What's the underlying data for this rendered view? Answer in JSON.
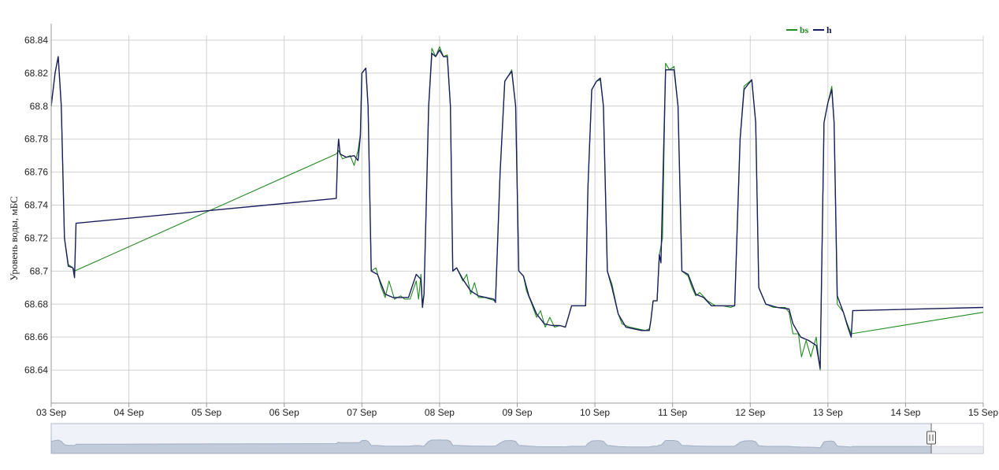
{
  "chart_data": {
    "type": "line",
    "title": "",
    "xlabel": "",
    "ylabel": "Уровень воды, мБС",
    "ylim": [
      68.62,
      68.85
    ],
    "xlim": [
      0,
      12
    ],
    "grid": true,
    "legend_position": "top-right",
    "x_ticks": [
      "03 Sep",
      "04 Sep",
      "05 Sep",
      "06 Sep",
      "07 Sep",
      "08 Sep",
      "09 Sep",
      "10 Sep",
      "11 Sep",
      "12 Sep",
      "13 Sep",
      "14 Sep",
      "15 Sep"
    ],
    "y_ticks": [
      "68.84",
      "68.82",
      "68.8",
      "68.78",
      "68.76",
      "68.74",
      "68.72",
      "68.7",
      "68.68",
      "68.66",
      "68.64"
    ],
    "series": [
      {
        "name": "bs",
        "color": "#228B22",
        "points": [
          [
            0.0,
            68.8
          ],
          [
            0.05,
            68.82
          ],
          [
            0.09,
            68.83
          ],
          [
            0.13,
            68.8
          ],
          [
            0.17,
            68.72
          ],
          [
            0.22,
            68.704
          ],
          [
            0.28,
            68.702
          ],
          [
            0.3,
            68.7
          ],
          [
            3.67,
            68.771
          ],
          [
            3.7,
            68.773
          ],
          [
            3.75,
            68.768
          ],
          [
            3.85,
            68.77
          ],
          [
            3.9,
            68.764
          ],
          [
            3.95,
            68.773
          ],
          [
            3.98,
            68.783
          ],
          [
            4.0,
            68.82
          ],
          [
            4.05,
            68.823
          ],
          [
            4.08,
            68.8
          ],
          [
            4.12,
            68.7
          ],
          [
            4.18,
            68.702
          ],
          [
            4.25,
            68.69
          ],
          [
            4.3,
            68.684
          ],
          [
            4.35,
            68.694
          ],
          [
            4.42,
            68.683
          ],
          [
            4.5,
            68.685
          ],
          [
            4.55,
            68.683
          ],
          [
            4.62,
            68.683
          ],
          [
            4.7,
            68.694
          ],
          [
            4.73,
            68.683
          ],
          [
            4.76,
            68.698
          ],
          [
            4.78,
            68.68
          ],
          [
            4.8,
            68.686
          ],
          [
            4.86,
            68.8
          ],
          [
            4.9,
            68.835
          ],
          [
            4.95,
            68.83
          ],
          [
            5.0,
            68.836
          ],
          [
            5.05,
            68.83
          ],
          [
            5.1,
            68.831
          ],
          [
            5.14,
            68.8
          ],
          [
            5.17,
            68.7
          ],
          [
            5.22,
            68.702
          ],
          [
            5.3,
            68.694
          ],
          [
            5.35,
            68.698
          ],
          [
            5.4,
            68.686
          ],
          [
            5.45,
            68.693
          ],
          [
            5.5,
            68.684
          ],
          [
            5.58,
            68.684
          ],
          [
            5.65,
            68.683
          ],
          [
            5.72,
            68.682
          ],
          [
            5.78,
            68.76
          ],
          [
            5.84,
            68.815
          ],
          [
            5.88,
            68.818
          ],
          [
            5.93,
            68.822
          ],
          [
            5.98,
            68.8
          ],
          [
            6.02,
            68.7
          ],
          [
            6.08,
            68.697
          ],
          [
            6.12,
            68.688
          ],
          [
            6.18,
            68.681
          ],
          [
            6.25,
            68.672
          ],
          [
            6.3,
            68.676
          ],
          [
            6.36,
            68.666
          ],
          [
            6.42,
            68.672
          ],
          [
            6.48,
            68.666
          ],
          [
            6.55,
            68.667
          ],
          [
            6.62,
            68.666
          ],
          [
            6.7,
            68.679
          ],
          [
            6.8,
            68.679
          ],
          [
            6.88,
            68.679
          ],
          [
            6.91,
            68.75
          ],
          [
            6.96,
            68.81
          ],
          [
            7.02,
            68.815
          ],
          [
            7.07,
            68.816
          ],
          [
            7.11,
            68.8
          ],
          [
            7.16,
            68.7
          ],
          [
            7.22,
            68.692
          ],
          [
            7.3,
            68.674
          ],
          [
            7.35,
            68.668
          ],
          [
            7.45,
            68.666
          ],
          [
            7.55,
            68.665
          ],
          [
            7.65,
            68.664
          ],
          [
            7.7,
            68.665
          ],
          [
            7.72,
            68.67
          ],
          [
            7.75,
            68.682
          ],
          [
            7.8,
            68.682
          ],
          [
            7.83,
            68.71
          ],
          [
            7.87,
            68.72
          ],
          [
            7.91,
            68.826
          ],
          [
            7.96,
            68.822
          ],
          [
            8.02,
            68.824
          ],
          [
            8.07,
            68.8
          ],
          [
            8.12,
            68.7
          ],
          [
            8.2,
            68.697
          ],
          [
            8.25,
            68.69
          ],
          [
            8.3,
            68.685
          ],
          [
            8.35,
            68.687
          ],
          [
            8.45,
            68.682
          ],
          [
            8.55,
            68.679
          ],
          [
            8.65,
            68.679
          ],
          [
            8.75,
            68.678
          ],
          [
            8.8,
            68.679
          ],
          [
            8.87,
            68.78
          ],
          [
            8.92,
            68.812
          ],
          [
            8.97,
            68.814
          ],
          [
            9.02,
            68.816
          ],
          [
            9.07,
            68.79
          ],
          [
            9.11,
            68.69
          ],
          [
            9.2,
            68.68
          ],
          [
            9.3,
            68.678
          ],
          [
            9.45,
            68.678
          ],
          [
            9.5,
            68.675
          ],
          [
            9.55,
            68.662
          ],
          [
            9.62,
            68.662
          ],
          [
            9.66,
            68.648
          ],
          [
            9.72,
            68.658
          ],
          [
            9.78,
            68.648
          ],
          [
            9.85,
            68.66
          ],
          [
            9.88,
            68.648
          ],
          [
            9.9,
            68.64
          ],
          [
            9.95,
            68.79
          ],
          [
            10.0,
            68.802
          ],
          [
            10.05,
            68.812
          ],
          [
            10.08,
            68.79
          ],
          [
            10.12,
            68.68
          ],
          [
            10.2,
            68.675
          ],
          [
            10.25,
            68.668
          ],
          [
            10.3,
            68.662
          ],
          [
            12.0,
            68.675
          ]
        ]
      },
      {
        "name": "h",
        "color": "#1a1f5c",
        "points": [
          [
            0.0,
            68.8
          ],
          [
            0.05,
            68.82
          ],
          [
            0.09,
            68.83
          ],
          [
            0.13,
            68.8
          ],
          [
            0.17,
            68.72
          ],
          [
            0.22,
            68.703
          ],
          [
            0.28,
            68.702
          ],
          [
            0.3,
            68.696
          ],
          [
            0.32,
            68.729
          ],
          [
            3.67,
            68.744
          ],
          [
            3.69,
            68.774
          ],
          [
            3.7,
            68.78
          ],
          [
            3.72,
            68.771
          ],
          [
            3.8,
            68.769
          ],
          [
            3.9,
            68.77
          ],
          [
            3.95,
            68.767
          ],
          [
            3.98,
            68.782
          ],
          [
            4.0,
            68.82
          ],
          [
            4.05,
            68.823
          ],
          [
            4.08,
            68.8
          ],
          [
            4.12,
            68.7
          ],
          [
            4.2,
            68.698
          ],
          [
            4.3,
            68.686
          ],
          [
            4.4,
            68.684
          ],
          [
            4.5,
            68.684
          ],
          [
            4.6,
            68.684
          ],
          [
            4.7,
            68.698
          ],
          [
            4.76,
            68.695
          ],
          [
            4.78,
            68.678
          ],
          [
            4.8,
            68.686
          ],
          [
            4.86,
            68.8
          ],
          [
            4.9,
            68.832
          ],
          [
            4.95,
            68.83
          ],
          [
            5.0,
            68.834
          ],
          [
            5.05,
            68.83
          ],
          [
            5.1,
            68.83
          ],
          [
            5.14,
            68.8
          ],
          [
            5.17,
            68.7
          ],
          [
            5.22,
            68.702
          ],
          [
            5.3,
            68.695
          ],
          [
            5.4,
            68.688
          ],
          [
            5.5,
            68.685
          ],
          [
            5.6,
            68.684
          ],
          [
            5.7,
            68.683
          ],
          [
            5.72,
            68.681
          ],
          [
            5.78,
            68.76
          ],
          [
            5.84,
            68.815
          ],
          [
            5.88,
            68.818
          ],
          [
            5.93,
            68.821
          ],
          [
            5.98,
            68.8
          ],
          [
            6.02,
            68.7
          ],
          [
            6.08,
            68.697
          ],
          [
            6.15,
            68.685
          ],
          [
            6.25,
            68.674
          ],
          [
            6.35,
            68.668
          ],
          [
            6.45,
            68.667
          ],
          [
            6.55,
            68.667
          ],
          [
            6.62,
            68.666
          ],
          [
            6.7,
            68.679
          ],
          [
            6.8,
            68.679
          ],
          [
            6.88,
            68.679
          ],
          [
            6.91,
            68.75
          ],
          [
            6.96,
            68.81
          ],
          [
            7.02,
            68.815
          ],
          [
            7.07,
            68.817
          ],
          [
            7.11,
            68.8
          ],
          [
            7.16,
            68.7
          ],
          [
            7.22,
            68.69
          ],
          [
            7.3,
            68.674
          ],
          [
            7.4,
            68.666
          ],
          [
            7.5,
            68.665
          ],
          [
            7.6,
            68.664
          ],
          [
            7.7,
            68.664
          ],
          [
            7.72,
            68.67
          ],
          [
            7.75,
            68.682
          ],
          [
            7.8,
            68.682
          ],
          [
            7.83,
            68.71
          ],
          [
            7.85,
            68.705
          ],
          [
            7.91,
            68.822
          ],
          [
            7.96,
            68.822
          ],
          [
            8.02,
            68.822
          ],
          [
            8.07,
            68.8
          ],
          [
            8.12,
            68.7
          ],
          [
            8.2,
            68.698
          ],
          [
            8.3,
            68.686
          ],
          [
            8.4,
            68.684
          ],
          [
            8.5,
            68.679
          ],
          [
            8.6,
            68.679
          ],
          [
            8.7,
            68.679
          ],
          [
            8.8,
            68.679
          ],
          [
            8.87,
            68.78
          ],
          [
            8.92,
            68.81
          ],
          [
            8.97,
            68.813
          ],
          [
            9.02,
            68.816
          ],
          [
            9.07,
            68.79
          ],
          [
            9.11,
            68.69
          ],
          [
            9.2,
            68.68
          ],
          [
            9.35,
            68.678
          ],
          [
            9.5,
            68.677
          ],
          [
            9.55,
            68.668
          ],
          [
            9.65,
            68.66
          ],
          [
            9.75,
            68.658
          ],
          [
            9.85,
            68.655
          ],
          [
            9.9,
            68.641
          ],
          [
            9.95,
            68.79
          ],
          [
            10.0,
            68.802
          ],
          [
            10.05,
            68.81
          ],
          [
            10.08,
            68.79
          ],
          [
            10.12,
            68.685
          ],
          [
            10.2,
            68.675
          ],
          [
            10.25,
            68.667
          ],
          [
            10.3,
            68.66
          ],
          [
            10.32,
            68.676
          ],
          [
            12.0,
            68.678
          ]
        ]
      }
    ]
  }
}
